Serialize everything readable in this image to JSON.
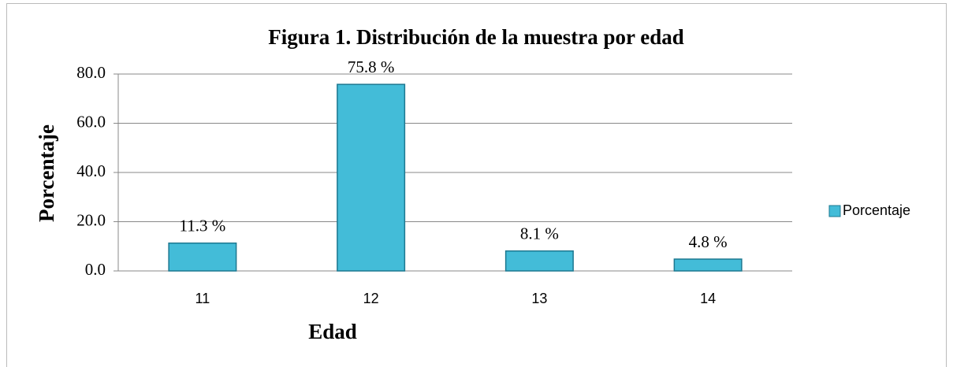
{
  "chart_data": {
    "type": "bar",
    "title": "Figura 1. Distribución de la muestra por edad",
    "x_label": "Edad",
    "y_label": "Porcentaje",
    "categories": [
      "11",
      "12",
      "13",
      "14"
    ],
    "series": [
      {
        "name": "Porcentaje",
        "color": "#43bcd8",
        "values": [
          11.3,
          75.8,
          8.1,
          4.8
        ],
        "value_labels": [
          "11.3 %",
          "75.8 %",
          "8.1 %",
          "4.8 %"
        ]
      }
    ],
    "ylim": [
      0,
      80
    ],
    "yticks": [
      {
        "value": 0,
        "label": "0.0"
      },
      {
        "value": 20,
        "label": "20.0"
      },
      {
        "value": 40,
        "label": "40.0"
      },
      {
        "value": 60,
        "label": "60.0"
      },
      {
        "value": 80,
        "label": "80.0"
      }
    ],
    "grid": true,
    "legend": "right"
  }
}
